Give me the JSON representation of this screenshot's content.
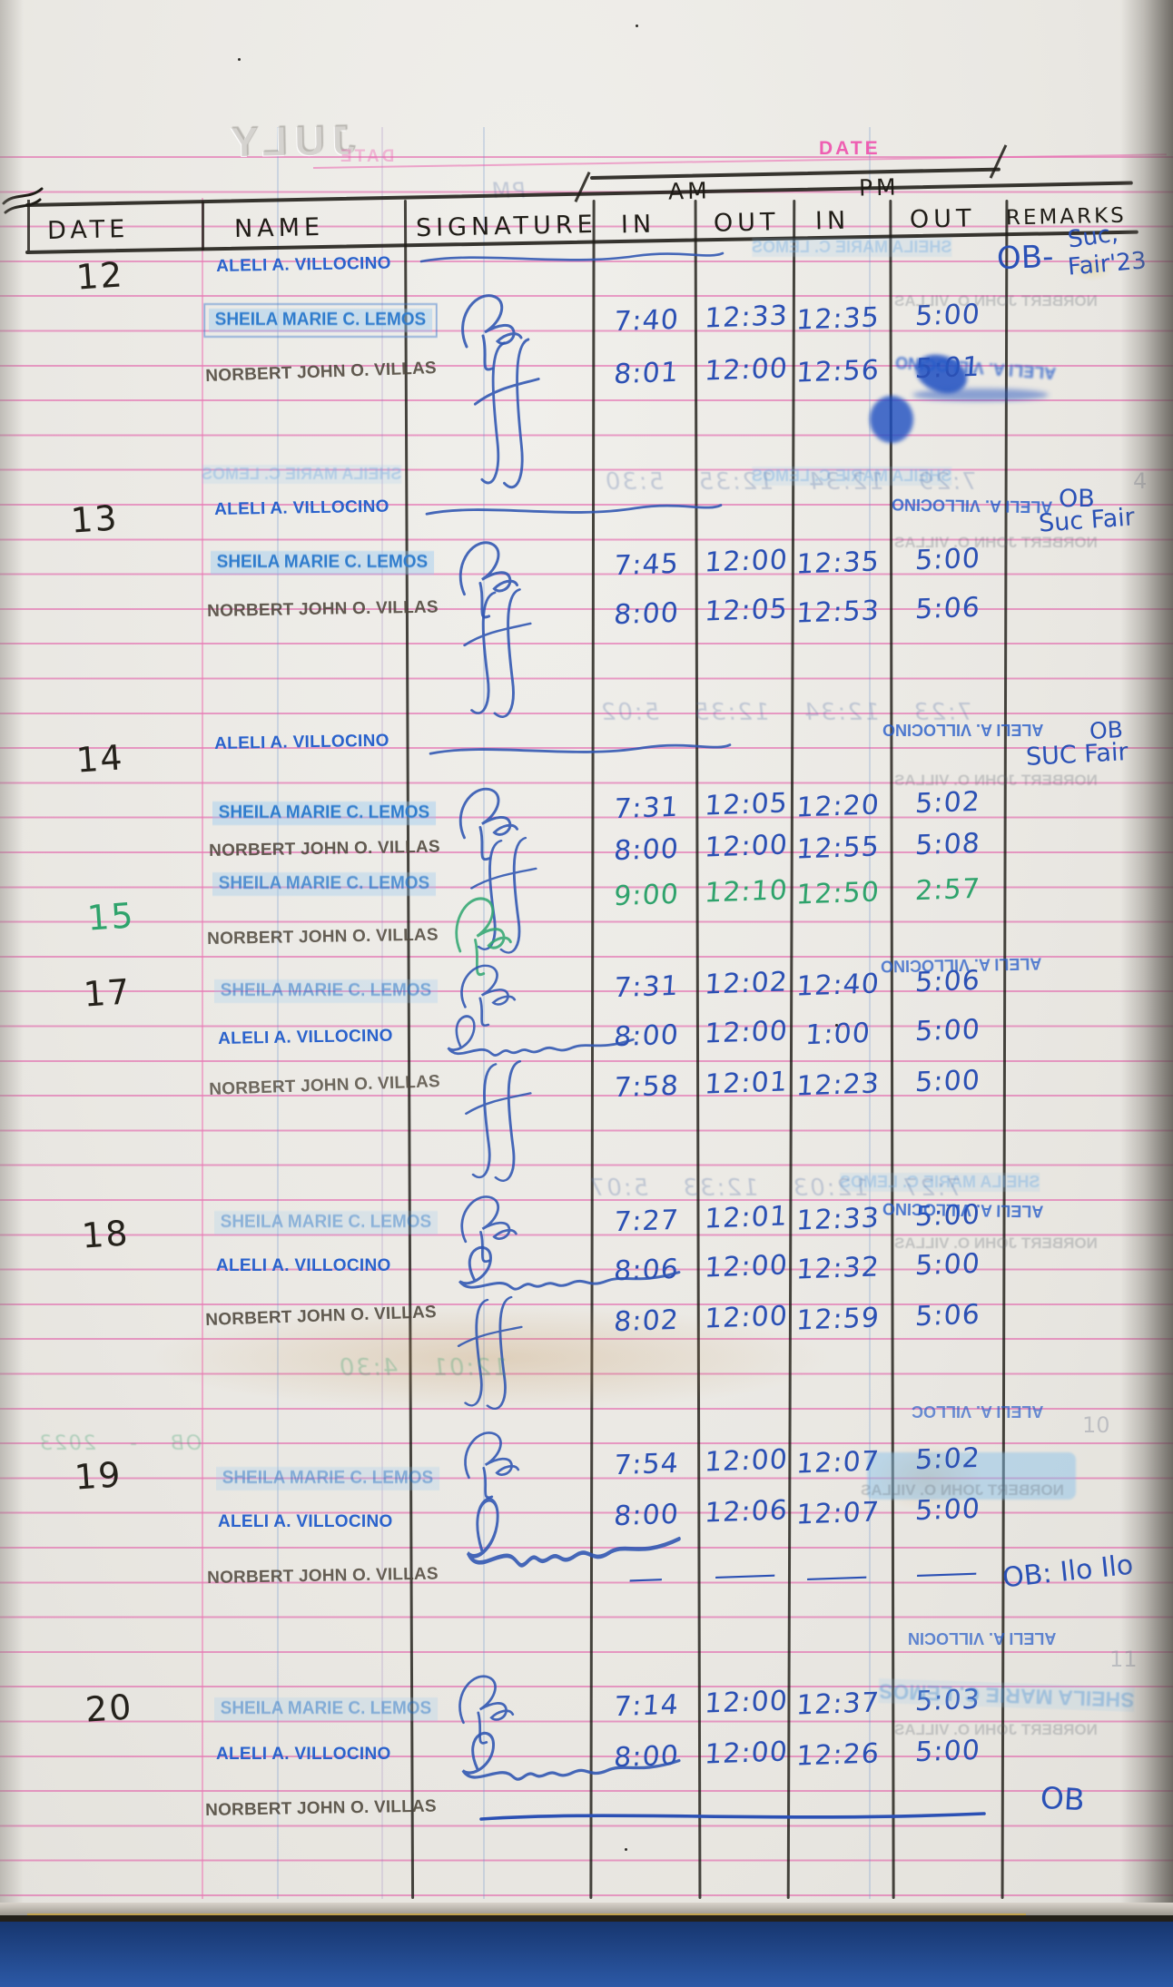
{
  "document": {
    "kind": "handwritten attendance logbook page"
  },
  "header": {
    "printed_date_label": "DATE",
    "am": "AM",
    "pm": "PM",
    "columns": [
      "DATE",
      "NAME",
      "SIGNATURE",
      "IN",
      "OUT",
      "IN",
      "OUT",
      "REMARKS"
    ]
  },
  "ghosts": {
    "month_bleed": "JULY",
    "date_label_bleed": "DATE",
    "pm_bleed": "PM",
    "stamp_aleli": "ALELI A. VILLOCINO",
    "stamp_sheila": "SHEILA MARIE C. LEMOS",
    "stamp_norbert": "NORBERT JOHN O. VILLAS",
    "stamp_aleli_partial1": "ALELI A. VILLOC",
    "stamp_aleli_partial2": "ALELI A. VILLOCIN",
    "script_lines": [
      "7:29 12:34 12:35 5:30",
      "7:23 12:34 12:35 5:02",
      "7:27 12:03 12:33 5:07",
      "12:01 4:30",
      "OB - 2023"
    ],
    "edge_marks": [
      "4",
      "10",
      "11"
    ]
  },
  "log": {
    "groups": [
      {
        "date": "12",
        "remark": {
          "main": "OB-",
          "line1": "Suc,",
          "line2": "Fair'23"
        },
        "rows": [
          {
            "name": "ALELI A. VILLOCINO",
            "person": "aleli",
            "signature": "flourish",
            "am_in": "",
            "am_out": "",
            "pm_in": "",
            "pm_out": ""
          },
          {
            "name": "SHEILA MARIE C. LEMOS",
            "person": "sheila",
            "signature": "sheila-initials",
            "am_in": "7:40",
            "am_out": "12:33",
            "pm_in": "12:35",
            "pm_out": "5:00"
          },
          {
            "name": "NORBERT JOHN O. VILLAS",
            "person": "norbert",
            "signature": "double-loop",
            "am_in": "8:01",
            "am_out": "12:00",
            "pm_in": "12:56",
            "pm_out": "5:01"
          }
        ]
      },
      {
        "date": "13",
        "remark": {
          "main": "OB",
          "line1": "Suc Fair"
        },
        "rows": [
          {
            "name": "ALELI A. VILLOCINO",
            "person": "aleli",
            "signature": "flourish",
            "am_in": "",
            "am_out": "",
            "pm_in": "",
            "pm_out": ""
          },
          {
            "name": "SHEILA MARIE C. LEMOS",
            "person": "sheila",
            "signature": "sheila-initials",
            "am_in": "7:45",
            "am_out": "12:00",
            "pm_in": "12:35",
            "pm_out": "5:00"
          },
          {
            "name": "NORBERT JOHN O. VILLAS",
            "person": "norbert",
            "signature": "double-loop",
            "am_in": "8:00",
            "am_out": "12:05",
            "pm_in": "12:53",
            "pm_out": "5:06"
          }
        ]
      },
      {
        "date": "14",
        "remark": {
          "main": "OB",
          "line1": "SUC Fair"
        },
        "rows": [
          {
            "name": "ALELI A. VILLOCINO",
            "person": "aleli",
            "signature": "flourish",
            "am_in": "",
            "am_out": "",
            "pm_in": "",
            "pm_out": ""
          },
          {
            "name": "SHEILA MARIE C. LEMOS",
            "person": "sheila",
            "signature": "sheila-initials",
            "am_in": "7:31",
            "am_out": "12:05",
            "pm_in": "12:20",
            "pm_out": "5:02"
          },
          {
            "name": "NORBERT JOHN O. VILLAS",
            "person": "norbert",
            "signature": "double-loop",
            "am_in": "8:00",
            "am_out": "12:00",
            "pm_in": "12:55",
            "pm_out": "5:08"
          }
        ]
      },
      {
        "date": "15",
        "rows": [
          {
            "name": "SHEILA MARIE C. LEMOS",
            "person": "sheila",
            "signature": "sheila-initials",
            "ink": "green",
            "am_in": "9:00",
            "am_out": "12:10",
            "pm_in": "12:50",
            "pm_out": "2:57"
          },
          {
            "name": "NORBERT JOHN O. VILLAS",
            "person": "norbert",
            "am_in": "",
            "am_out": "",
            "pm_in": "",
            "pm_out": ""
          }
        ]
      },
      {
        "date": "17",
        "rows": [
          {
            "name": "SHEILA MARIE C. LEMOS",
            "person": "sheila",
            "signature": "sheila-initials",
            "am_in": "7:31",
            "am_out": "12:02",
            "pm_in": "12:40",
            "pm_out": "5:06"
          },
          {
            "name": "ALELI A. VILLOCINO",
            "person": "aleli",
            "signature": "cursive",
            "am_in": "8:00",
            "am_out": "12:00",
            "pm_in": "1:00",
            "pm_out": "5:00"
          },
          {
            "name": "NORBERT JOHN O. VILLAS",
            "person": "norbert",
            "signature": "double-loop",
            "am_in": "7:58",
            "am_out": "12:01",
            "pm_in": "12:23",
            "pm_out": "5:00"
          }
        ]
      },
      {
        "date": "18",
        "rows": [
          {
            "name": "SHEILA MARIE C. LEMOS",
            "person": "sheila",
            "signature": "sheila-initials",
            "am_in": "7:27",
            "am_out": "12:01",
            "pm_in": "12:33",
            "pm_out": "5:00"
          },
          {
            "name": "ALELI A. VILLOCINO",
            "person": "aleli",
            "signature": "cursive",
            "am_in": "8:06",
            "am_out": "12:00",
            "pm_in": "12:32",
            "pm_out": "5:00"
          },
          {
            "name": "NORBERT JOHN O. VILLAS",
            "person": "norbert",
            "signature": "double-loop",
            "am_in": "8:02",
            "am_out": "12:00",
            "pm_in": "12:59",
            "pm_out": "5:06"
          }
        ]
      },
      {
        "date": "19",
        "remark": {
          "norbert": "OB: Ilo Ilo"
        },
        "rows": [
          {
            "name": "SHEILA MARIE C. LEMOS",
            "person": "sheila",
            "signature": "sheila-initials",
            "am_in": "7:54",
            "am_out": "12:00",
            "pm_in": "12:07",
            "pm_out": "5:02"
          },
          {
            "name": "ALELI A. VILLOCINO",
            "person": "aleli",
            "signature": "cursive",
            "am_in": "8:00",
            "am_out": "12:06",
            "pm_in": "12:07",
            "pm_out": "5:00"
          },
          {
            "name": "NORBERT JOHN O. VILLAS",
            "person": "norbert",
            "am_in": "—",
            "am_out": "—",
            "pm_in": "—",
            "pm_out": "—"
          }
        ]
      },
      {
        "date": "20",
        "remark": {
          "norbert": "OB"
        },
        "rows": [
          {
            "name": "SHEILA MARIE C. LEMOS",
            "person": "sheila",
            "signature": "sheila-initials",
            "am_in": "7:14",
            "am_out": "12:00",
            "pm_in": "12:37",
            "pm_out": "5:03"
          },
          {
            "name": "ALELI A. VILLOCINO",
            "person": "aleli",
            "signature": "cursive",
            "am_in": "8:00",
            "am_out": "12:00",
            "pm_in": "12:26",
            "pm_out": "5:00"
          },
          {
            "name": "NORBERT JOHN O. VILLAS",
            "person": "norbert",
            "am_in": "",
            "am_out": "",
            "pm_in": "",
            "pm_out": ""
          }
        ]
      }
    ]
  }
}
